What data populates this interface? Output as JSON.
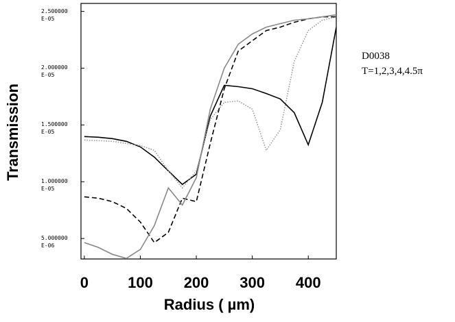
{
  "chart_data": {
    "type": "line",
    "annotations": [
      "D0038",
      "T=1,2,3,4,4.5π"
    ],
    "x_label": "Radius ( µm)",
    "y_label": "Transmission",
    "x": [
      0,
      25,
      50,
      75,
      100,
      125,
      150,
      175,
      200,
      225,
      250,
      275,
      300,
      325,
      350,
      375,
      400,
      425,
      450
    ],
    "series": [
      {
        "color": "#000000",
        "style": "solid",
        "values": [
          1.398e-05,
          1.392e-05,
          1.38e-05,
          1.356e-05,
          1.307e-05,
          1.217e-05,
          1.096e-05,
          9.76e-06,
          1.066e-05,
          1.578e-05,
          1.849e-05,
          1.837e-05,
          1.819e-05,
          1.777e-05,
          1.729e-05,
          1.608e-05,
          1.325e-05,
          1.699e-05,
          2.361e-05
        ]
      },
      {
        "color": "#999999",
        "style": "dotted",
        "values": [
          1.367e-05,
          1.362e-05,
          1.356e-05,
          1.337e-05,
          1.319e-05,
          1.277e-05,
          1.096e-05,
          9.46e-06,
          1.096e-05,
          1.548e-05,
          1.699e-05,
          1.711e-05,
          1.639e-05,
          1.277e-05,
          1.458e-05,
          2.06e-05,
          2.331e-05,
          2.422e-05,
          2.452e-05
        ]
      },
      {
        "color": "#000000",
        "style": "dashed",
        "values": [
          8.67e-06,
          8.55e-06,
          8.25e-06,
          7.65e-06,
          6.45e-06,
          4.64e-06,
          5.54e-06,
          8.55e-06,
          8.25e-06,
          1.337e-05,
          1.819e-05,
          2.151e-05,
          2.241e-05,
          2.331e-05,
          2.361e-05,
          2.404e-05,
          2.434e-05,
          2.452e-05,
          2.452e-05
        ]
      },
      {
        "color": "#888888",
        "style": "solid",
        "values": [
          4.64e-06,
          4.22e-06,
          3.61e-06,
          3.25e-06,
          4.04e-06,
          6.14e-06,
          9.46e-06,
          7.95e-06,
          1.036e-05,
          1.639e-05,
          2e-05,
          2.211e-05,
          2.301e-05,
          2.361e-05,
          2.392e-05,
          2.422e-05,
          2.434e-05,
          2.452e-05,
          2.47e-05
        ]
      }
    ],
    "xlim": [
      -6,
      450
    ],
    "xticks": [
      0,
      100,
      200,
      300,
      400
    ],
    "ylim": [
      3.2e-06,
      2.57e-05
    ],
    "yticks": [
      {
        "value": 5e-06,
        "label": "5.000000 E-06"
      },
      {
        "value": 1e-05,
        "label": "1.000000 E-05"
      },
      {
        "value": 1.5e-05,
        "label": "1.500000 E-05"
      },
      {
        "value": 2e-05,
        "label": "2.000000 E-05"
      },
      {
        "value": 2.5e-05,
        "label": "2.500000 E-05"
      }
    ]
  }
}
